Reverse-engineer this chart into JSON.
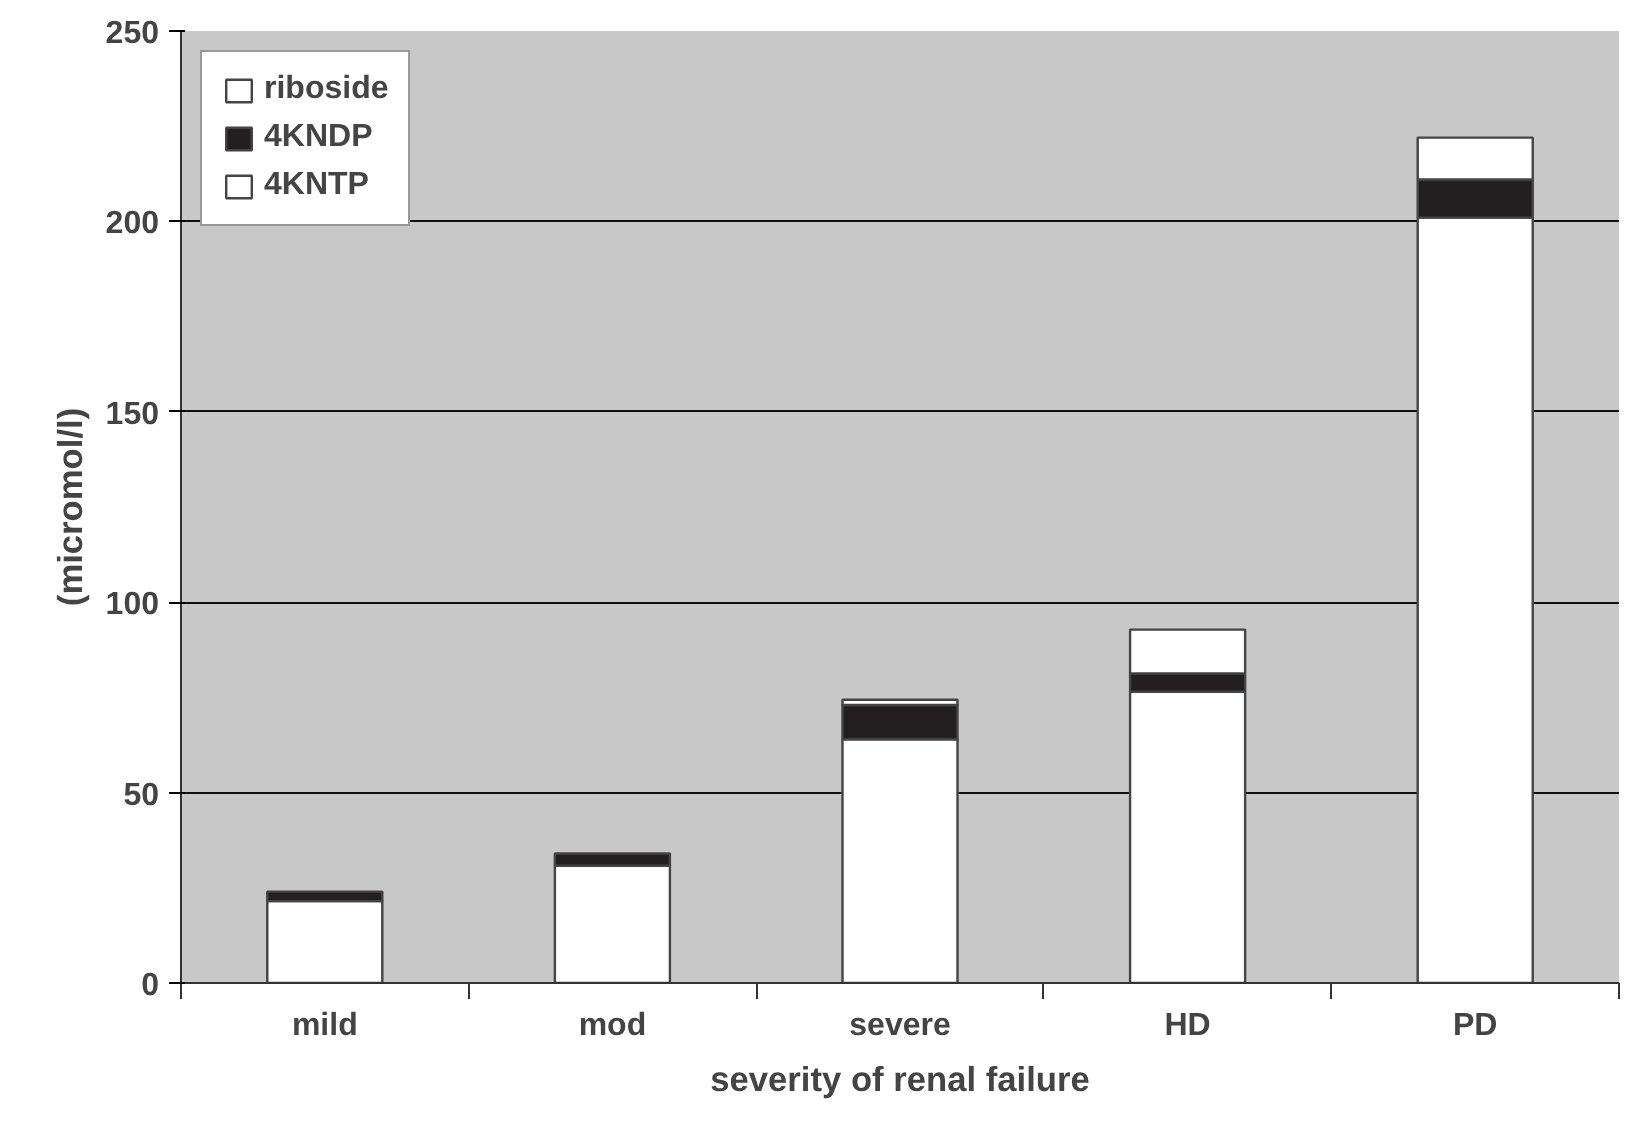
{
  "chart_data": {
    "type": "bar",
    "stacked": true,
    "xlabel": "severity of renal failure",
    "ylabel": "(micromol/l)",
    "categories": [
      "mild",
      "mod",
      "severe",
      "HD",
      "PD"
    ],
    "series": [
      {
        "name": "4KNTP",
        "color": "#ffffff",
        "values": [
          21.5,
          30.8,
          64,
          76.5,
          201
        ]
      },
      {
        "name": "4KNDP",
        "color": "#231f20",
        "values": [
          2.5,
          3.2,
          9,
          4.8,
          10
        ]
      },
      {
        "name": "riboside",
        "color": "#ffffff",
        "values": [
          0,
          0,
          1.4,
          11.5,
          11
        ]
      }
    ],
    "ylim": [
      0,
      250
    ],
    "yticks": [
      0,
      50,
      100,
      150,
      200,
      250
    ],
    "grid": "y",
    "legend": "top left"
  }
}
